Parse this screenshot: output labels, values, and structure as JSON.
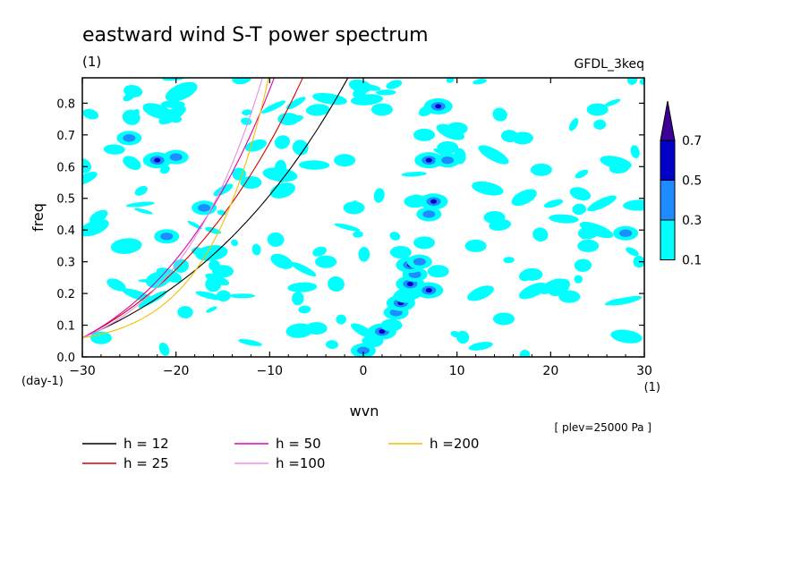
{
  "chart_data": {
    "type": "heatmap",
    "title": "eastward wind S-T power spectrum",
    "subtitle_left": "(1)",
    "subtitle_right": "GFDL_3keq",
    "xlabel": "wvn",
    "ylabel": "freq",
    "x_unit": "(1)",
    "y_unit": "(day-1)",
    "note": "[ plev=25000 Pa ]",
    "xlim": [
      -30,
      30
    ],
    "ylim": [
      0,
      0.88
    ],
    "xticks": [
      -30,
      -20,
      -10,
      0,
      10,
      20,
      30
    ],
    "yticks": [
      0.0,
      0.1,
      0.2,
      0.3,
      0.4,
      0.5,
      0.6,
      0.7,
      0.8
    ],
    "colorbar": {
      "levels": [
        "0.1",
        "0.3",
        "0.5",
        "0.7"
      ],
      "colors": [
        "#00ffff",
        "#1e8cff",
        "#0000c8",
        "#3c0096"
      ]
    },
    "dispersion_curves": [
      {
        "name": "h = 12",
        "h": 12,
        "color": "#000000"
      },
      {
        "name": "h = 25",
        "h": 25,
        "color": "#d60000"
      },
      {
        "name": "h = 50",
        "h": 50,
        "color": "#e000b0"
      },
      {
        "name": "h =100",
        "h": 100,
        "color": "#e890e0"
      },
      {
        "name": "h =200",
        "h": 200,
        "color": "#f0c000"
      }
    ],
    "blobs": [
      {
        "x": 0,
        "y": 0.02,
        "level": 2
      },
      {
        "x": 1,
        "y": 0.05,
        "level": 1
      },
      {
        "x": 2,
        "y": 0.08,
        "level": 3
      },
      {
        "x": 3,
        "y": 0.1,
        "level": 1
      },
      {
        "x": 3.5,
        "y": 0.14,
        "level": 2
      },
      {
        "x": 4,
        "y": 0.17,
        "level": 3
      },
      {
        "x": 4.5,
        "y": 0.19,
        "level": 1
      },
      {
        "x": 5,
        "y": 0.23,
        "level": 3
      },
      {
        "x": 5.5,
        "y": 0.26,
        "level": 2
      },
      {
        "x": 5,
        "y": 0.29,
        "level": 3
      },
      {
        "x": 6,
        "y": 0.3,
        "level": 2
      },
      {
        "x": 7,
        "y": 0.21,
        "level": 3
      },
      {
        "x": 8,
        "y": 0.27,
        "level": 1
      },
      {
        "x": 4,
        "y": 0.33,
        "level": 1
      },
      {
        "x": 6.5,
        "y": 0.36,
        "level": 1
      },
      {
        "x": 7,
        "y": 0.45,
        "level": 2
      },
      {
        "x": 7.5,
        "y": 0.49,
        "level": 3
      },
      {
        "x": 5.5,
        "y": 0.49,
        "level": 1
      },
      {
        "x": 7,
        "y": 0.62,
        "level": 3
      },
      {
        "x": 9,
        "y": 0.62,
        "level": 2
      },
      {
        "x": 9,
        "y": 0.66,
        "level": 1
      },
      {
        "x": 8,
        "y": 0.79,
        "level": 3
      },
      {
        "x": 6.5,
        "y": 0.7,
        "level": 1
      },
      {
        "x": 10,
        "y": 0.72,
        "level": 1
      },
      {
        "x": 17,
        "y": 0.69,
        "level": 1
      },
      {
        "x": -22,
        "y": 0.62,
        "level": 3
      },
      {
        "x": -20,
        "y": 0.63,
        "level": 2
      },
      {
        "x": -25,
        "y": 0.69,
        "level": 2
      },
      {
        "x": -17,
        "y": 0.47,
        "level": 2
      },
      {
        "x": -21,
        "y": 0.38,
        "level": 2
      },
      {
        "x": -5,
        "y": 0.09,
        "level": 1
      },
      {
        "x": -1,
        "y": 0.47,
        "level": 1
      },
      {
        "x": -4,
        "y": 0.3,
        "level": 1
      },
      {
        "x": 14,
        "y": 0.44,
        "level": 1
      },
      {
        "x": 19,
        "y": 0.59,
        "level": 1
      },
      {
        "x": 28,
        "y": 0.39,
        "level": 2
      },
      {
        "x": 24,
        "y": 0.35,
        "level": 1
      },
      {
        "x": 18,
        "y": 0.26,
        "level": 1
      },
      {
        "x": 15,
        "y": 0.12,
        "level": 1
      },
      {
        "x": 22,
        "y": 0.19,
        "level": 1
      },
      {
        "x": -12,
        "y": 0.55,
        "level": 1
      },
      {
        "x": -8,
        "y": 0.75,
        "level": 1
      },
      {
        "x": 2,
        "y": 0.78,
        "level": 1
      },
      {
        "x": -15,
        "y": 0.27,
        "level": 1
      },
      {
        "x": -28,
        "y": 0.06,
        "level": 1
      },
      {
        "x": 25,
        "y": 0.78,
        "level": 1
      },
      {
        "x": -2,
        "y": 0.62,
        "level": 1
      },
      {
        "x": 12,
        "y": 0.35,
        "level": 1
      }
    ]
  }
}
